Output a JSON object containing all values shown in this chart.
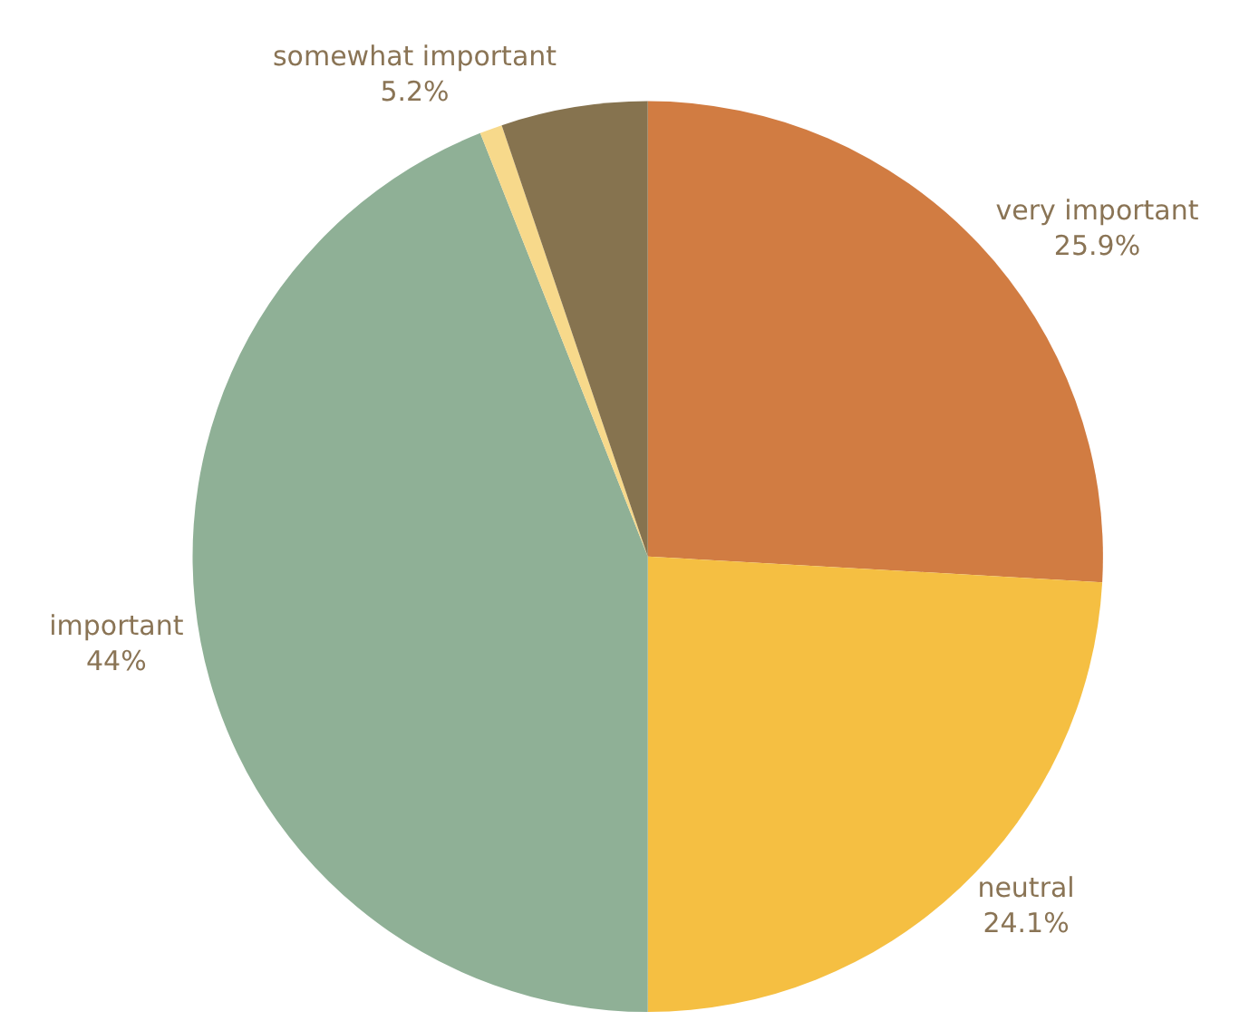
{
  "chart_data": {
    "type": "pie",
    "categories": [
      "very important",
      "neutral",
      "important",
      null,
      "somewhat important"
    ],
    "values": [
      25.9,
      24.1,
      44,
      0.8,
      5.2
    ],
    "value_labels": [
      "25.9%",
      "24.1%",
      "44%",
      null,
      "5.2%"
    ],
    "colors": [
      "#d17c42",
      "#f5bf42",
      "#8fb096",
      "#f7d98b",
      "#86734f"
    ],
    "legend": false
  }
}
